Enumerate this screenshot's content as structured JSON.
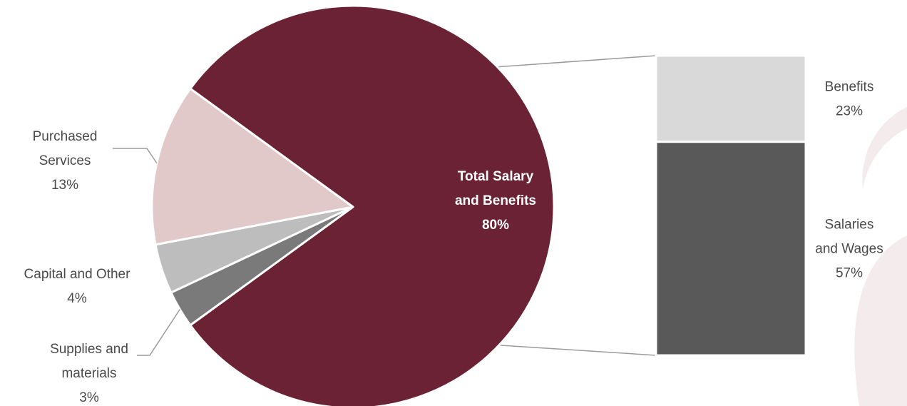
{
  "colors": {
    "background": "#ffffff",
    "watermark": "#f4ecec",
    "connector": "#9b9b9b",
    "label_text": "#4a4a4a"
  },
  "chart_data": {
    "type": "pie",
    "subtype": "bar-of-pie",
    "pie": {
      "slices": [
        {
          "label_lines": [
            "Total Salary",
            "and Benefits"
          ],
          "value_label": "80%",
          "value": 80,
          "color": "#6b2234",
          "label_position": "inside",
          "label_weight": "bold"
        },
        {
          "label_lines": [
            "Supplies and",
            "materials"
          ],
          "value_label": "3%",
          "value": 3,
          "color": "#7a7a7a",
          "label_position": "outside-left"
        },
        {
          "label_lines": [
            "Capital and Other"
          ],
          "value_label": "4%",
          "value": 4,
          "color": "#bdbdbd",
          "label_position": "outside-left"
        },
        {
          "label_lines": [
            "Purchased",
            "Services"
          ],
          "value_label": "13%",
          "value": 13,
          "color": "#e2c9c9",
          "label_position": "outside-left"
        }
      ]
    },
    "breakdown_bar": {
      "of_slice": "Total Salary and Benefits",
      "segments": [
        {
          "label_lines": [
            "Benefits"
          ],
          "value_label": "23%",
          "value": 23,
          "color": "#d9d9d9"
        },
        {
          "label_lines": [
            "Salaries",
            "and Wages"
          ],
          "value_label": "57%",
          "value": 57,
          "color": "#595959"
        }
      ]
    }
  }
}
